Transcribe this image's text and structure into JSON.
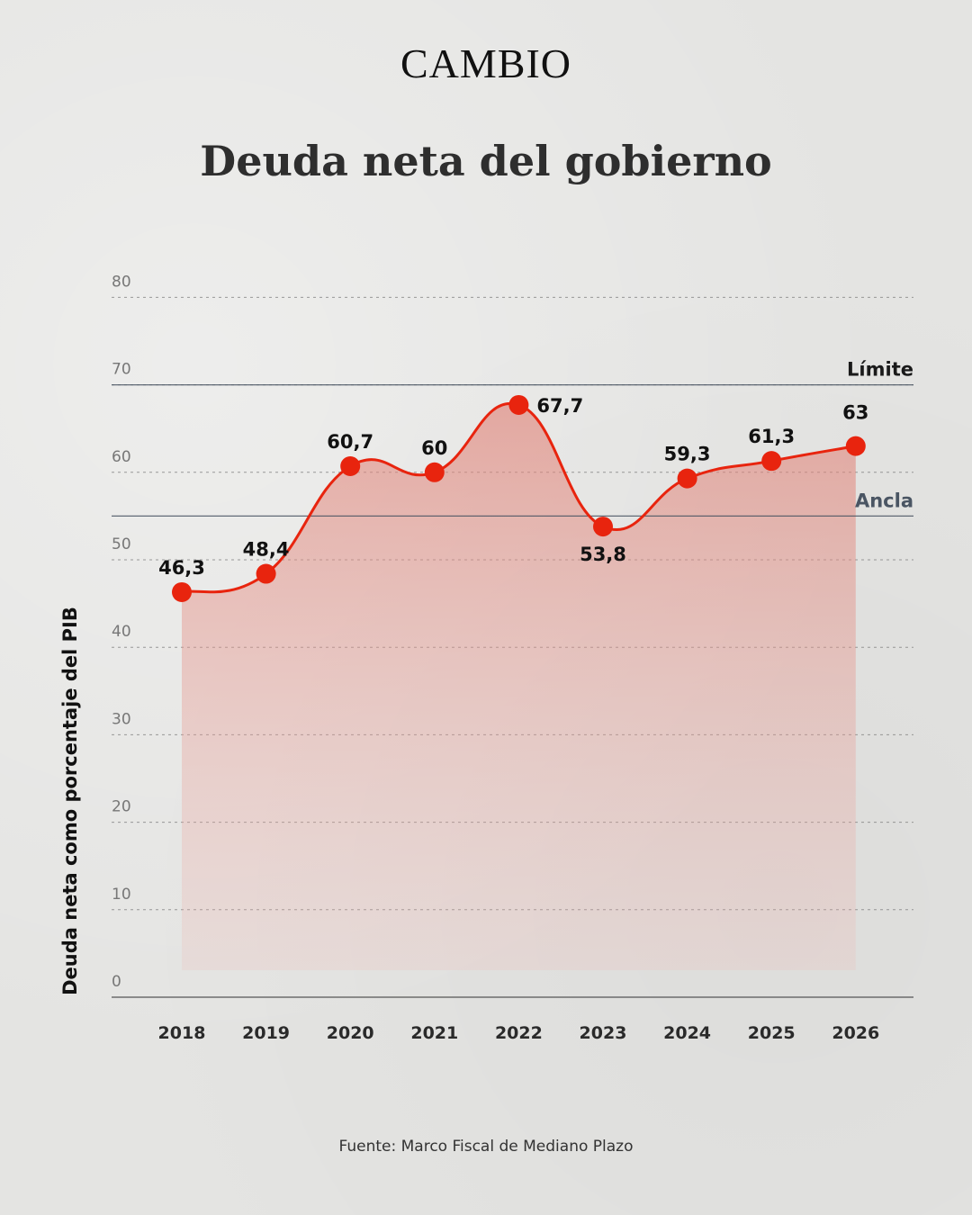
{
  "brand": "CAMBIO",
  "source": "Fuente: Marco Fiscal de Mediano Plazo",
  "colors": {
    "line": "#e8240e",
    "area": "#e07a6e",
    "reference": "#4a5563"
  },
  "chart_data": {
    "type": "area",
    "title": "Deuda neta del gobierno",
    "ylabel": "Deuda neta como porcentaje del PIB",
    "xlabel": "",
    "categories": [
      "2018",
      "2019",
      "2020",
      "2021",
      "2022",
      "2023",
      "2024",
      "2025",
      "2026"
    ],
    "values": [
      46.3,
      48.4,
      60.7,
      60,
      67.7,
      53.8,
      59.3,
      61.3,
      63
    ],
    "data_labels": [
      "46,3",
      "48,4",
      "60,7",
      "60",
      "67,7",
      "53,8",
      "59,3",
      "61,3",
      "63"
    ],
    "ylim": [
      0,
      80
    ],
    "yticks": [
      "0",
      "10",
      "20",
      "30",
      "40",
      "50",
      "60",
      "70",
      "80"
    ],
    "grid": true,
    "reference_lines": [
      {
        "label": "Límite",
        "value": 70
      },
      {
        "label": "Ancla",
        "value": 55
      }
    ]
  }
}
